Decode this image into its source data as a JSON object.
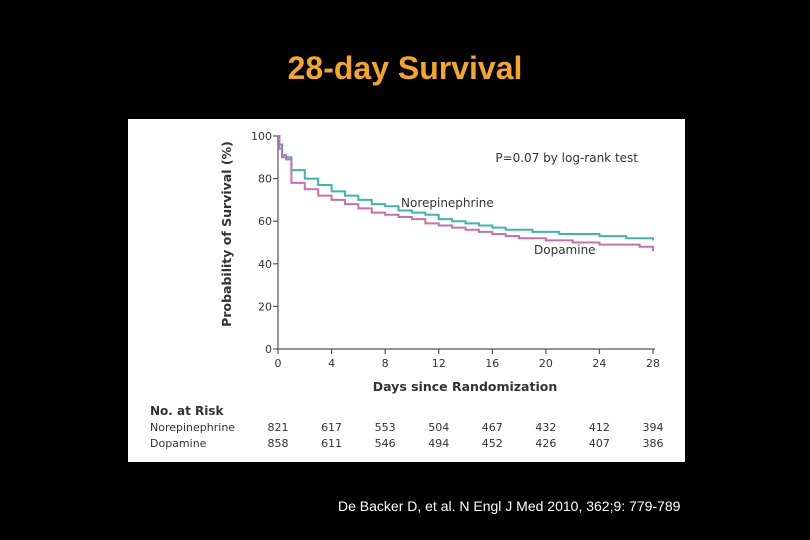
{
  "slide": {
    "title": "28-day Survival",
    "citation": "De Backer D, et al. N Engl J Med 2010, 362;9: 779-789"
  },
  "colors": {
    "background": "#000000",
    "title": "#f5a623",
    "norepinephrine": "#3ab5b0",
    "dopamine": "#c86fb0"
  },
  "chart_data": {
    "type": "line",
    "step": true,
    "xlabel": "Days since Randomization",
    "ylabel": "Probability of Survival (%)",
    "xlim": [
      0,
      28
    ],
    "ylim": [
      0,
      100
    ],
    "xticks": [
      0,
      4,
      8,
      12,
      16,
      20,
      24,
      28
    ],
    "yticks": [
      0,
      20,
      40,
      60,
      80,
      100
    ],
    "annotation": "P=0.07 by log-rank test",
    "grid": false,
    "series": [
      {
        "name": "Norepinephrine",
        "x": [
          0,
          0.1,
          0.3,
          0.6,
          1.0,
          1.5,
          2.0,
          2.5,
          3.0,
          4.0,
          5.0,
          6.0,
          7.0,
          8.0,
          9.0,
          10.0,
          11.0,
          12.0,
          13.0,
          14.0,
          15.0,
          16.0,
          17.0,
          18.0,
          19.0,
          20.0,
          21.0,
          22.0,
          23.0,
          24.0,
          25.0,
          26.0,
          27.0,
          28.0
        ],
        "y": [
          100,
          96,
          91,
          90,
          84,
          84,
          80,
          80,
          77,
          74,
          72,
          70,
          68,
          67,
          65,
          64,
          63,
          61,
          60,
          59,
          58,
          57,
          56,
          56,
          55,
          55,
          54,
          54,
          54,
          53,
          53,
          52,
          52,
          51
        ]
      },
      {
        "name": "Dopamine",
        "x": [
          0,
          0.1,
          0.3,
          0.6,
          1.0,
          1.5,
          2.0,
          2.5,
          3.0,
          4.0,
          5.0,
          6.0,
          7.0,
          8.0,
          9.0,
          10.0,
          11.0,
          12.0,
          13.0,
          14.0,
          15.0,
          16.0,
          17.0,
          18.0,
          19.0,
          20.0,
          21.0,
          22.0,
          23.0,
          24.0,
          25.0,
          26.0,
          27.0,
          28.0
        ],
        "y": [
          100,
          94,
          90,
          89,
          78,
          78,
          75,
          75,
          72,
          70,
          68,
          66,
          64,
          63,
          62,
          61,
          59,
          58,
          57,
          56,
          55,
          54,
          53,
          52,
          52,
          51,
          51,
          50,
          50,
          49,
          49,
          49,
          48,
          46
        ]
      }
    ],
    "number_at_risk": {
      "heading": "No. at Risk",
      "days": [
        0,
        4,
        8,
        12,
        16,
        20,
        24,
        28
      ],
      "rows": [
        {
          "label": "Norepinephrine",
          "values": [
            "821",
            "617",
            "553",
            "504",
            "467",
            "432",
            "412",
            "394"
          ]
        },
        {
          "label": "Dopamine",
          "values": [
            "858",
            "611",
            "546",
            "494",
            "452",
            "426",
            "407",
            "386"
          ]
        }
      ]
    }
  }
}
